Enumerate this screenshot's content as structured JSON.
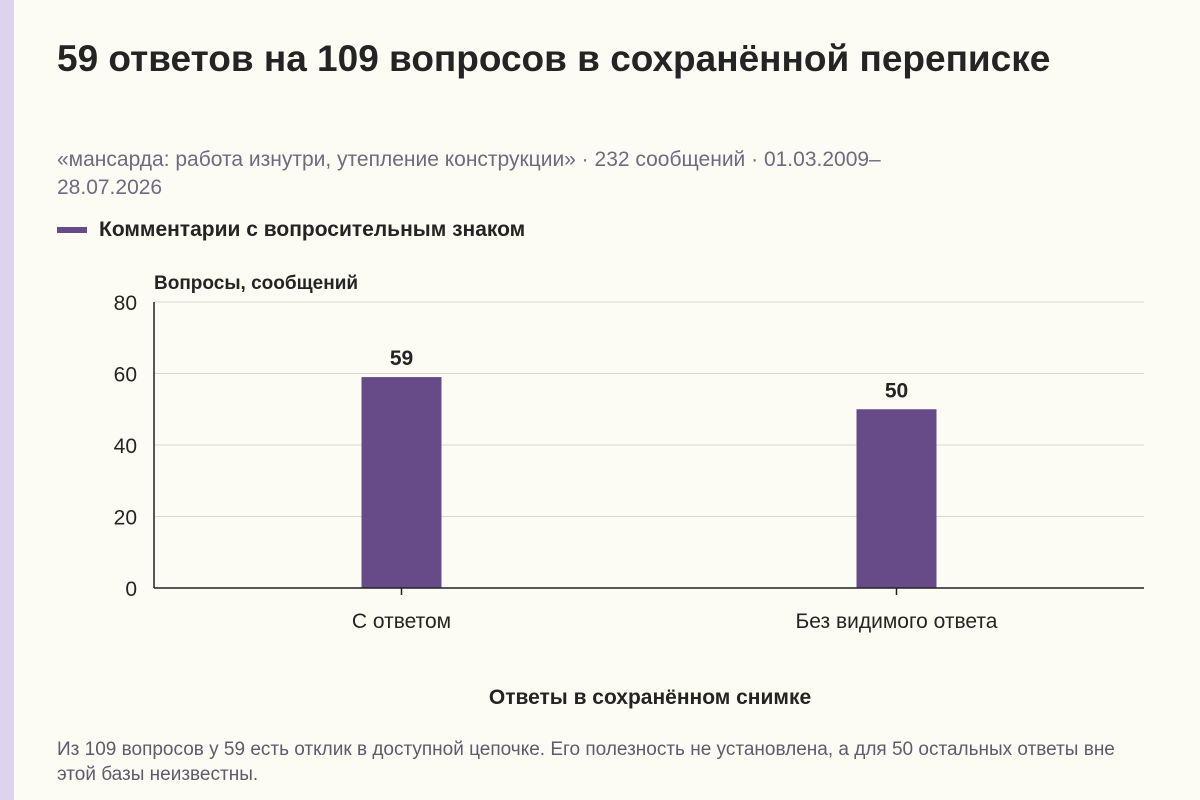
{
  "page": {
    "title": "59 ответов на 109 вопросов в сохранённой переписке",
    "subtitle": "«мансарда: работа изнутри, утепление конструкции» · 232 сообщений · 01.03.2009–28.07.2026",
    "legend_label": "Комментарии с вопросительным знаком",
    "note": "Из 109 вопросов у 59 есть отклик в доступной цепочке. Его полезность не установлена, а для 50 остальных ответы вне этой базы неизвестны."
  },
  "chart_data": {
    "type": "bar",
    "title": "59 ответов на 109 вопросов в сохранённой переписке",
    "subtitle": "«мансарда: работа изнутри, утепление конструкции» · 232 сообщений · 01.03.2009–28.07.2026",
    "xlabel": "Ответы в сохранённом снимке",
    "ylabel": "Вопросы, сообщений",
    "categories": [
      "С ответом",
      "Без видимого ответа"
    ],
    "series": [
      {
        "name": "Комментарии с вопросительным знаком",
        "values": [
          59,
          50
        ]
      }
    ],
    "ylim": [
      0,
      80
    ],
    "yticks": [
      0,
      20,
      40,
      60,
      80
    ],
    "grid": true,
    "legend": "top-left",
    "colors": {
      "bar": "#674a88",
      "grid": "#d8d6cf",
      "axis": "#222222"
    }
  }
}
